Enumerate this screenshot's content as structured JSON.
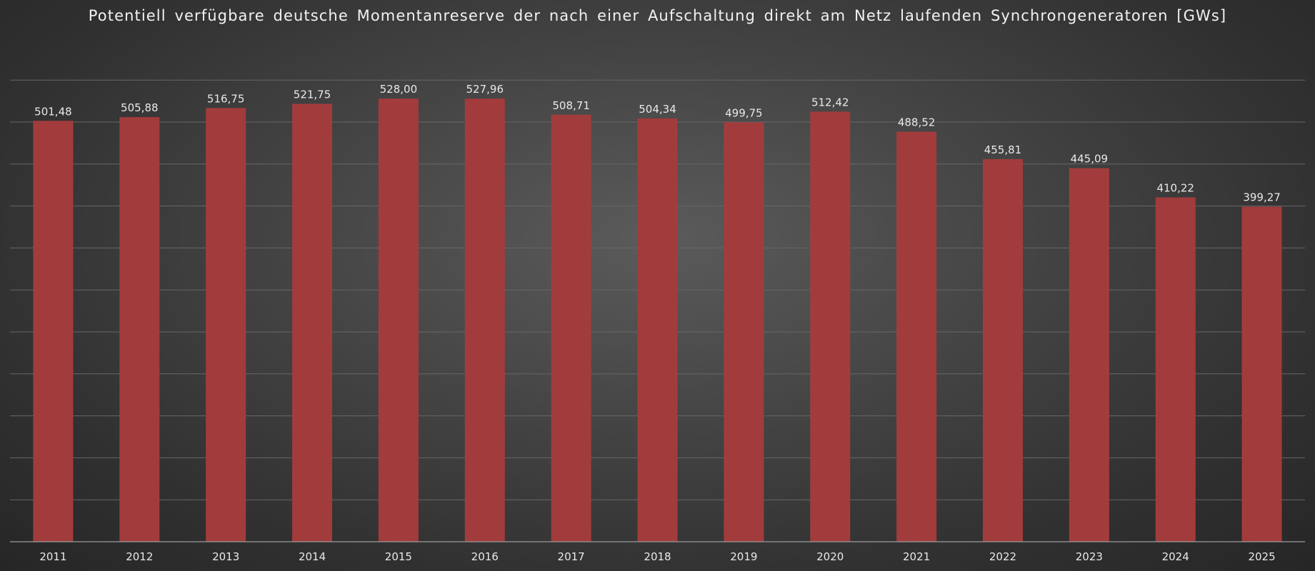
{
  "chart_data": {
    "type": "bar",
    "title": "Potentiell verfügbare deutsche Momentanreserve der nach einer Aufschaltung direkt am Netz laufenden Synchrongeneratoren [GWs]",
    "categories": [
      "2011",
      "2012",
      "2013",
      "2014",
      "2015",
      "2016",
      "2017",
      "2018",
      "2019",
      "2020",
      "2021",
      "2022",
      "2023",
      "2024",
      "2025"
    ],
    "values": [
      501.48,
      505.88,
      516.75,
      521.75,
      528.0,
      527.96,
      508.71,
      504.34,
      499.75,
      512.42,
      488.52,
      455.81,
      445.09,
      410.22,
      399.27
    ],
    "data_labels": [
      "501,48",
      "505,88",
      "516,75",
      "521,75",
      "528,00",
      "527,96",
      "508,71",
      "504,34",
      "499,75",
      "512,42",
      "488,52",
      "455,81",
      "445,09",
      "410,22",
      "399,27"
    ],
    "xlabel": "",
    "ylabel": "",
    "ylim": [
      0,
      550
    ],
    "grid": true,
    "legend": "none",
    "colors": {
      "bar": "#a23c3c",
      "text": "#e9e9e9",
      "grid": "#676767",
      "background_center": "#5b5b5b",
      "background_edge": "#262626"
    }
  }
}
